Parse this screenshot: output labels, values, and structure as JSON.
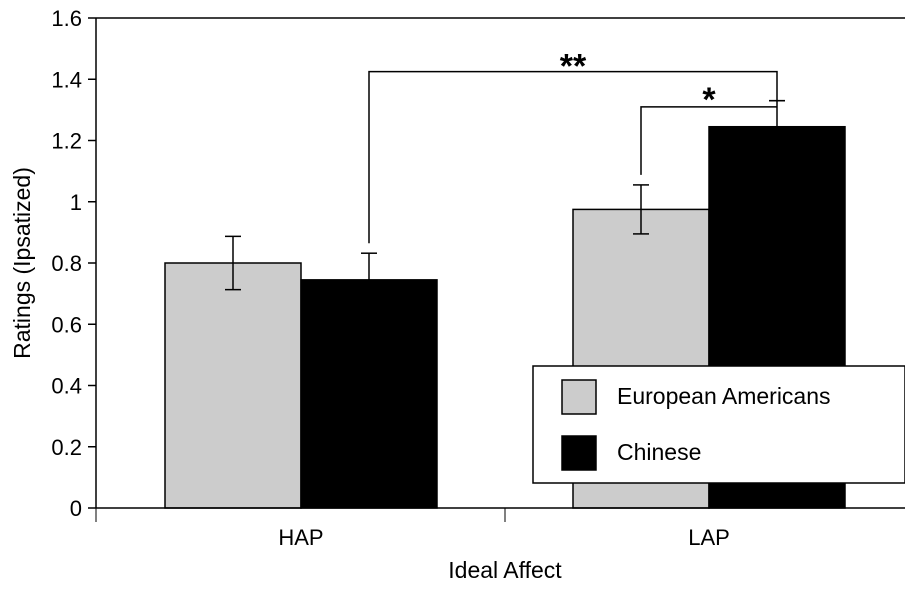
{
  "chart_data": {
    "type": "bar",
    "categories": [
      "HAP",
      "LAP"
    ],
    "series": [
      {
        "name": "European Americans",
        "values": [
          0.8,
          0.975
        ],
        "error": [
          0.087,
          0.08
        ],
        "color": "#cccccc"
      },
      {
        "name": "Chinese",
        "values": [
          0.745,
          1.245
        ],
        "error": [
          0.087,
          0.085
        ],
        "color": "#000000"
      }
    ],
    "title": "",
    "xlabel": "Ideal Affect",
    "ylabel": "Ratings (Ipsatized)",
    "ylim": [
      0,
      1.6
    ],
    "yticks": [
      "0",
      "0.2",
      "0.4",
      "0.6",
      "0.8",
      "1",
      "1.2",
      "1.4",
      "1.6"
    ],
    "grid": false,
    "legend_position": "bottom-right",
    "significance": [
      {
        "label": "**",
        "from": "HAP Chinese",
        "to": "LAP Chinese",
        "level": 1.425
      },
      {
        "label": "*",
        "from": "LAP European Americans",
        "to": "LAP Chinese",
        "level": 1.33
      }
    ]
  }
}
